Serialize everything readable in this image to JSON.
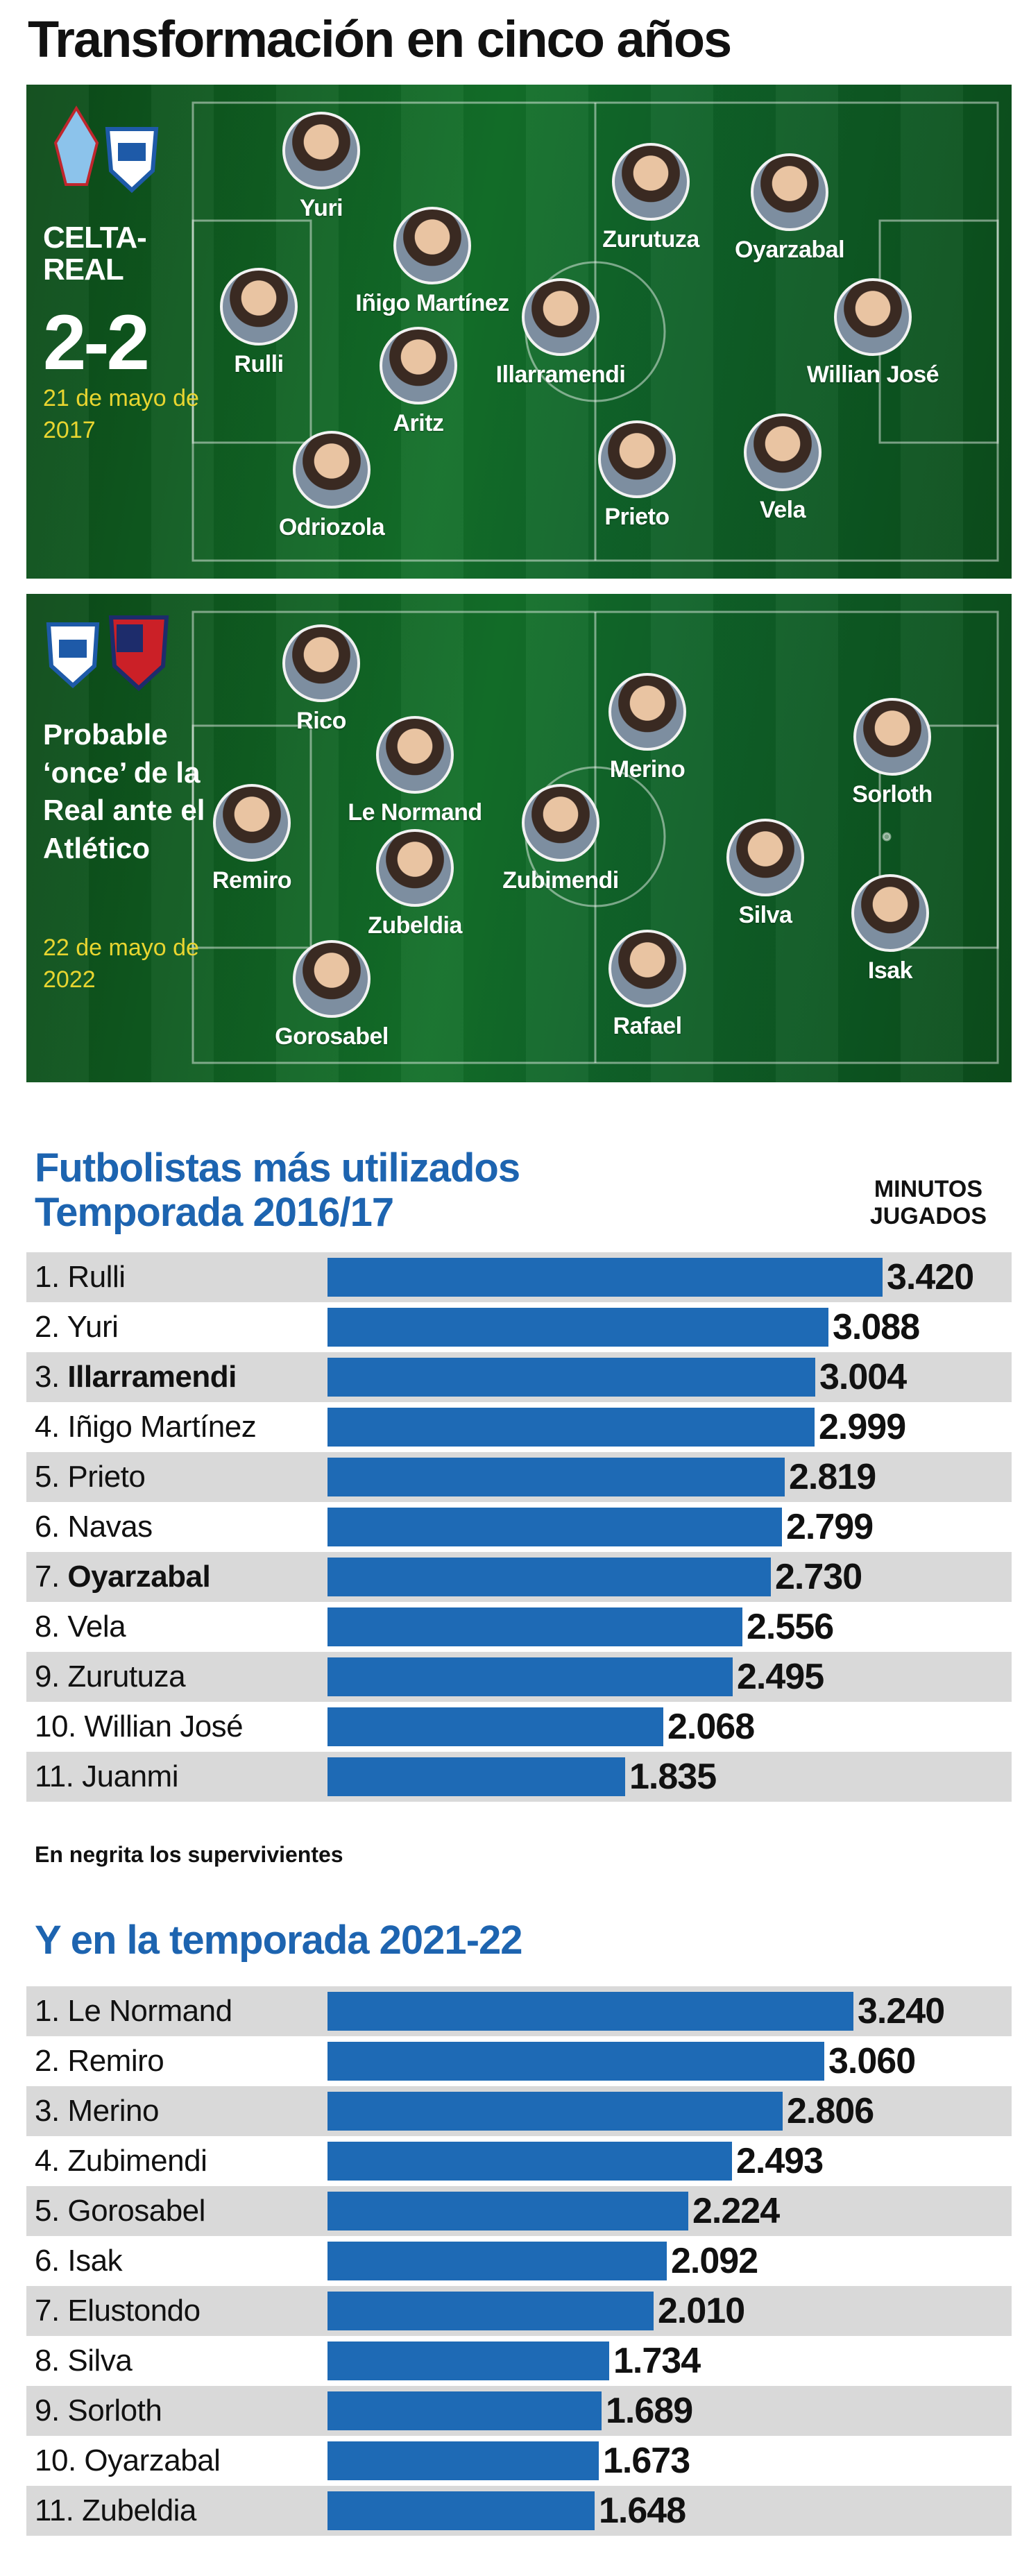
{
  "title": "Transformación en cinco años",
  "lineup_2017": {
    "match_title": "CELTA-\nREAL",
    "score": "2-2",
    "date": "21 de mayo de 2017",
    "crest_colors": [
      "#8cc3eb",
      "#1e5aa8"
    ],
    "players": [
      {
        "name": "Yuri"
      },
      {
        "name": "Iñigo Martínez"
      },
      {
        "name": "Rulli"
      },
      {
        "name": "Aritz"
      },
      {
        "name": "Odriozola"
      },
      {
        "name": "Illarramendi"
      },
      {
        "name": "Zurutuza"
      },
      {
        "name": "Oyarzabal"
      },
      {
        "name": "Willian José"
      },
      {
        "name": "Prieto"
      },
      {
        "name": "Vela"
      }
    ]
  },
  "lineup_2022": {
    "title": "Probable ‘once’ de la Real ante el Atlético",
    "date": "22 de mayo de 2022",
    "crest_colors": [
      "#1e5aa8",
      "#cb2027"
    ],
    "players": [
      {
        "name": "Rico"
      },
      {
        "name": "Le Normand"
      },
      {
        "name": "Remiro"
      },
      {
        "name": "Zubeldia"
      },
      {
        "name": "Gorosabel"
      },
      {
        "name": "Merino"
      },
      {
        "name": "Zubimendi"
      },
      {
        "name": "Rafael"
      },
      {
        "name": "Silva"
      },
      {
        "name": "Sorloth"
      },
      {
        "name": "Isak"
      }
    ]
  },
  "column_header": "MINUTOS\nJUGADOS",
  "note": "En negrita los supervivientes",
  "chart_data": [
    {
      "type": "bar",
      "title": "Futbolistas más utilizados\nTemporada 2016/17",
      "orientation": "horizontal",
      "value_unit": "MINUTOS JUGADOS",
      "xlim": [
        0,
        3420
      ],
      "bar_color": "#1e6ab5",
      "rows": [
        {
          "rank": "1.",
          "name": "Rulli",
          "value": 3420,
          "label": "3.420",
          "bold": false
        },
        {
          "rank": "2.",
          "name": "Yuri",
          "value": 3088,
          "label": "3.088",
          "bold": false
        },
        {
          "rank": "3.",
          "name": "Illarramendi",
          "value": 3004,
          "label": "3.004",
          "bold": true
        },
        {
          "rank": "4.",
          "name": "Iñigo Martínez",
          "value": 2999,
          "label": "2.999",
          "bold": false
        },
        {
          "rank": "5.",
          "name": "Prieto",
          "value": 2819,
          "label": "2.819",
          "bold": false
        },
        {
          "rank": "6.",
          "name": "Navas",
          "value": 2799,
          "label": "2.799",
          "bold": false
        },
        {
          "rank": "7.",
          "name": "Oyarzabal",
          "value": 2730,
          "label": "2.730",
          "bold": true
        },
        {
          "rank": "8.",
          "name": "Vela",
          "value": 2556,
          "label": "2.556",
          "bold": false
        },
        {
          "rank": "9. ",
          "name": "Zurutuza",
          "value": 2495,
          "label": "2.495",
          "bold": false
        },
        {
          "rank": "10.",
          "name": "Willian José",
          "value": 2068,
          "label": "2.068",
          "bold": false
        },
        {
          "rank": "11.",
          "name": "Juanmi",
          "value": 1835,
          "label": "1.835",
          "bold": false
        }
      ]
    },
    {
      "type": "bar",
      "title": "Y en la temporada 2021-22",
      "orientation": "horizontal",
      "value_unit": "MINUTOS JUGADOS",
      "xlim": [
        0,
        3420
      ],
      "bar_color": "#1e6ab5",
      "rows": [
        {
          "rank": "1.",
          "name": "Le Normand",
          "value": 3240,
          "label": "3.240",
          "bold": false
        },
        {
          "rank": "2.",
          "name": "Remiro",
          "value": 3060,
          "label": "3.060",
          "bold": false
        },
        {
          "rank": "3.",
          "name": "Merino",
          "value": 2806,
          "label": "2.806",
          "bold": false
        },
        {
          "rank": "4.",
          "name": "Zubimendi",
          "value": 2493,
          "label": "2.493",
          "bold": false
        },
        {
          "rank": "5.",
          "name": "Gorosabel",
          "value": 2224,
          "label": "2.224",
          "bold": false
        },
        {
          "rank": "6.",
          "name": "Isak",
          "value": 2092,
          "label": "2.092",
          "bold": false
        },
        {
          "rank": "7.",
          "name": "Elustondo",
          "value": 2010,
          "label": "2.010",
          "bold": false
        },
        {
          "rank": "8.",
          "name": "Silva",
          "value": 1734,
          "label": "1.734",
          "bold": false
        },
        {
          "rank": "9.",
          "name": "Sorloth",
          "value": 1689,
          "label": "1.689",
          "bold": false
        },
        {
          "rank": "10.",
          "name": "Oyarzabal",
          "value": 1673,
          "label": "1.673",
          "bold": false
        },
        {
          "rank": "11.",
          "name": "Zubeldia",
          "value": 1648,
          "label": "1.648",
          "bold": false
        }
      ]
    }
  ]
}
